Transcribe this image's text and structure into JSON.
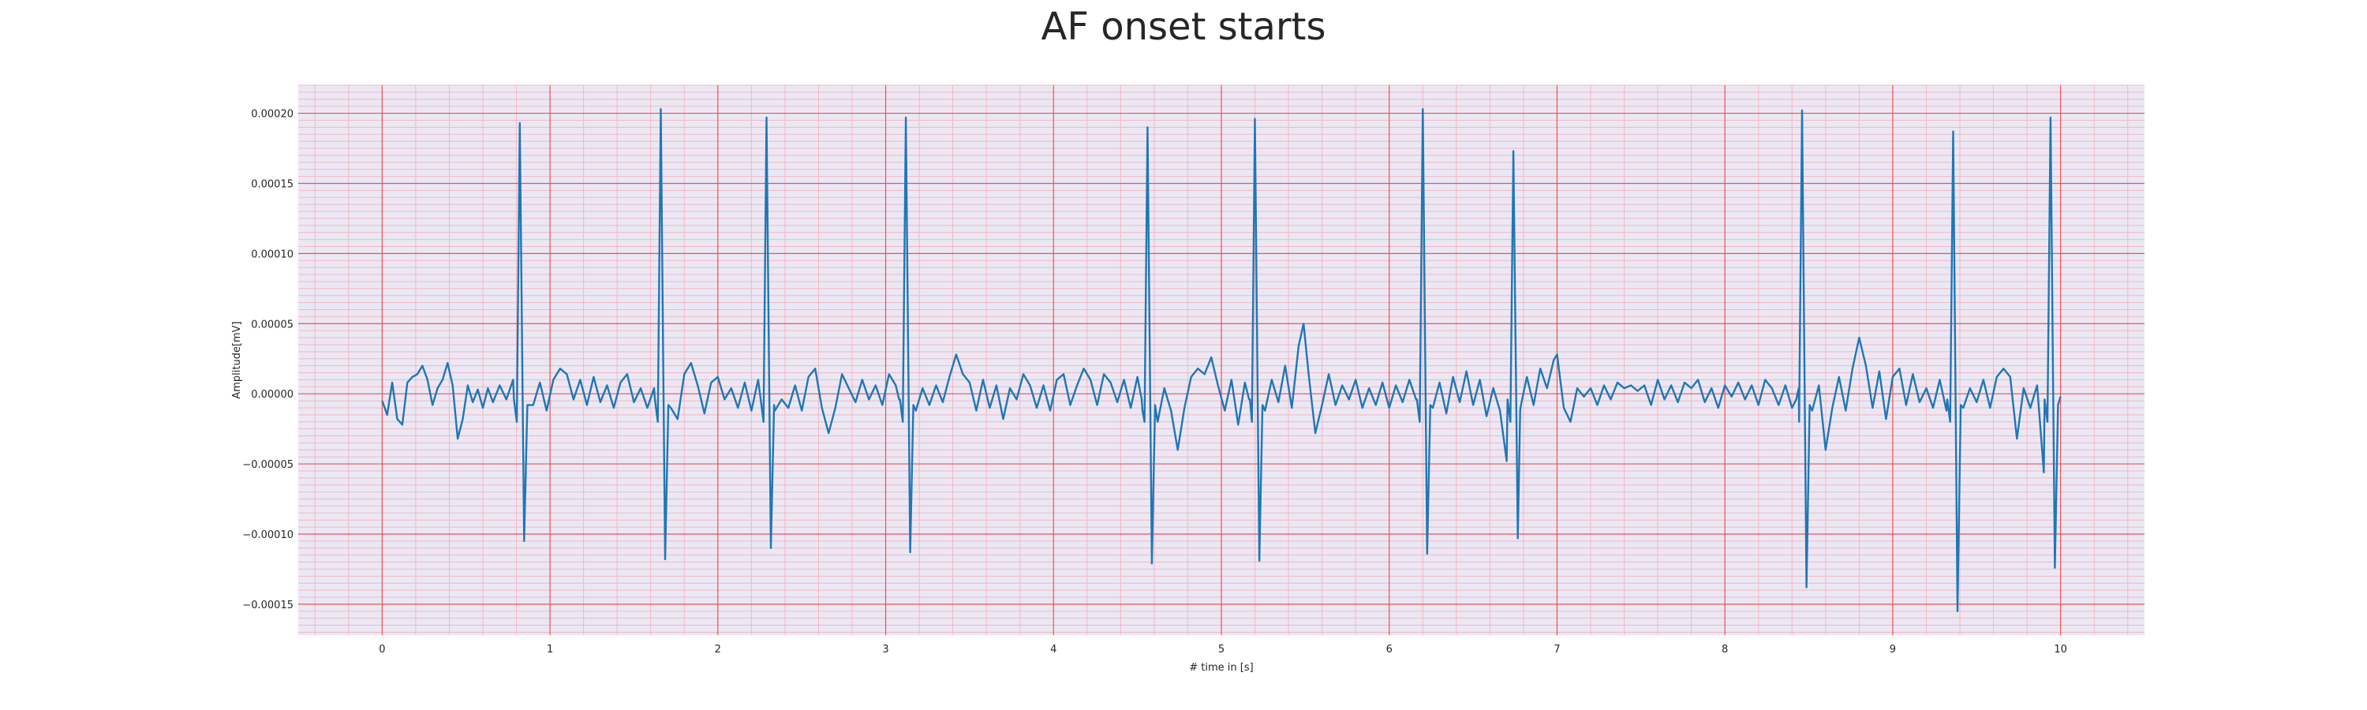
{
  "chart_data": {
    "type": "line",
    "title": "AF onset starts",
    "xlabel": "# time in [s]",
    "ylabel": "Amplitude[mV]",
    "xlim": [
      -0.5,
      10.5
    ],
    "ylim": [
      -0.000172,
      0.00022
    ],
    "x_ticks": [
      0,
      1,
      2,
      3,
      4,
      5,
      6,
      7,
      8,
      9,
      10
    ],
    "x_tick_labels": [
      "0",
      "1",
      "2",
      "3",
      "4",
      "5",
      "6",
      "7",
      "8",
      "9",
      "10"
    ],
    "y_ticks": [
      -0.00015,
      -0.0001,
      -5e-05,
      0,
      5e-05,
      0.0001,
      0.00015,
      0.0002
    ],
    "y_tick_labels": [
      "−0.00015",
      "−0.00010",
      "−0.00005",
      "0.00000",
      "0.00005",
      "0.00010",
      "0.00015",
      "0.00020"
    ],
    "grid": {
      "major": true,
      "minor": true
    },
    "colors": {
      "line": "#1f77b4",
      "background": "#eae8f4",
      "major_grid": "#f05050",
      "minor_grid": "#f4b6c2"
    },
    "series": [
      {
        "beats": [
          {
            "t": 0.82,
            "r": 0.000193,
            "s": -0.000105
          },
          {
            "t": 1.66,
            "r": 0.000203,
            "s": -0.000118
          },
          {
            "t": 2.29,
            "r": 0.000197,
            "s": -0.00011
          },
          {
            "t": 3.12,
            "r": 0.000197,
            "s": -0.000113
          },
          {
            "t": 4.56,
            "r": 0.00019,
            "s": -0.000121
          },
          {
            "t": 5.2,
            "r": 0.000196,
            "s": -0.000119
          },
          {
            "t": 6.2,
            "r": 0.000203,
            "s": -0.000114
          },
          {
            "t": 6.74,
            "r": 0.000173,
            "s": -0.000103
          },
          {
            "t": 8.46,
            "r": 0.000202,
            "s": -0.000138
          },
          {
            "t": 9.36,
            "r": 0.000187,
            "s": -0.000155
          },
          {
            "t": 9.94,
            "r": 0.000197,
            "s": -0.000124
          }
        ],
        "baseline": [
          [
            0.0,
            -5e-06
          ],
          [
            0.03,
            -1.5e-05
          ],
          [
            0.06,
            8e-06
          ],
          [
            0.09,
            -1.8e-05
          ],
          [
            0.12,
            -2.2e-05
          ],
          [
            0.15,
            8e-06
          ],
          [
            0.18,
            1.2e-05
          ],
          [
            0.21,
            1.4e-05
          ],
          [
            0.24,
            2e-05
          ],
          [
            0.27,
            1e-05
          ],
          [
            0.3,
            -8e-06
          ],
          [
            0.33,
            4e-06
          ],
          [
            0.36,
            1e-05
          ],
          [
            0.39,
            2.2e-05
          ],
          [
            0.42,
            6e-06
          ],
          [
            0.45,
            -3.2e-05
          ],
          [
            0.48,
            -1.8e-05
          ],
          [
            0.51,
            6e-06
          ],
          [
            0.54,
            -6e-06
          ],
          [
            0.57,
            3e-06
          ],
          [
            0.6,
            -1e-05
          ],
          [
            0.63,
            4e-06
          ],
          [
            0.66,
            -6e-06
          ],
          [
            0.7,
            6e-06
          ],
          [
            0.74,
            -4e-06
          ],
          [
            0.78,
            1e-05
          ],
          [
            0.9,
            -8e-06
          ],
          [
            0.94,
            8e-06
          ],
          [
            0.98,
            -1.2e-05
          ],
          [
            1.02,
            1e-05
          ],
          [
            1.06,
            1.8e-05
          ],
          [
            1.1,
            1.4e-05
          ],
          [
            1.14,
            -4e-06
          ],
          [
            1.18,
            1e-05
          ],
          [
            1.22,
            -8e-06
          ],
          [
            1.26,
            1.2e-05
          ],
          [
            1.3,
            -6e-06
          ],
          [
            1.34,
            6e-06
          ],
          [
            1.38,
            -1e-05
          ],
          [
            1.42,
            8e-06
          ],
          [
            1.46,
            1.4e-05
          ],
          [
            1.5,
            -6e-06
          ],
          [
            1.54,
            4e-06
          ],
          [
            1.58,
            -1e-05
          ],
          [
            1.62,
            4e-06
          ],
          [
            1.72,
            -1e-05
          ],
          [
            1.76,
            -1.8e-05
          ],
          [
            1.8,
            1.4e-05
          ],
          [
            1.84,
            2.2e-05
          ],
          [
            1.88,
            6e-06
          ],
          [
            1.92,
            -1.4e-05
          ],
          [
            1.96,
            8e-06
          ],
          [
            2.0,
            1.2e-05
          ],
          [
            2.04,
            -4e-06
          ],
          [
            2.08,
            4e-06
          ],
          [
            2.12,
            -1e-05
          ],
          [
            2.16,
            8e-06
          ],
          [
            2.2,
            -1.2e-05
          ],
          [
            2.24,
            1e-05
          ],
          [
            2.34,
            -1.2e-05
          ],
          [
            2.38,
            -4e-06
          ],
          [
            2.42,
            -1e-05
          ],
          [
            2.46,
            6e-06
          ],
          [
            2.5,
            -1.2e-05
          ],
          [
            2.54,
            1.2e-05
          ],
          [
            2.58,
            1.8e-05
          ],
          [
            2.62,
            -1e-05
          ],
          [
            2.66,
            -2.8e-05
          ],
          [
            2.7,
            -1e-05
          ],
          [
            2.74,
            1.4e-05
          ],
          [
            2.78,
            4e-06
          ],
          [
            2.82,
            -6e-06
          ],
          [
            2.86,
            1e-05
          ],
          [
            2.9,
            -4e-06
          ],
          [
            2.94,
            6e-06
          ],
          [
            2.98,
            -8e-06
          ],
          [
            3.02,
            1.4e-05
          ],
          [
            3.06,
            6e-06
          ],
          [
            3.08,
            -4e-06
          ],
          [
            3.18,
            -1.2e-05
          ],
          [
            3.22,
            4e-06
          ],
          [
            3.26,
            -8e-06
          ],
          [
            3.3,
            6e-06
          ],
          [
            3.34,
            -6e-06
          ],
          [
            3.38,
            1.2e-05
          ],
          [
            3.42,
            2.8e-05
          ],
          [
            3.46,
            1.4e-05
          ],
          [
            3.5,
            8e-06
          ],
          [
            3.54,
            -1.2e-05
          ],
          [
            3.58,
            1e-05
          ],
          [
            3.62,
            -1e-05
          ],
          [
            3.66,
            6e-06
          ],
          [
            3.7,
            -1.8e-05
          ],
          [
            3.74,
            4e-06
          ],
          [
            3.78,
            -4e-06
          ],
          [
            3.82,
            1.4e-05
          ],
          [
            3.86,
            6e-06
          ],
          [
            3.9,
            -1e-05
          ],
          [
            3.94,
            6e-06
          ],
          [
            3.98,
            -1.2e-05
          ],
          [
            4.02,
            1e-05
          ],
          [
            4.06,
            1.4e-05
          ],
          [
            4.1,
            -8e-06
          ],
          [
            4.14,
            6e-06
          ],
          [
            4.18,
            1.8e-05
          ],
          [
            4.22,
            1e-05
          ],
          [
            4.26,
            -8e-06
          ],
          [
            4.3,
            1.4e-05
          ],
          [
            4.34,
            8e-06
          ],
          [
            4.38,
            -6e-06
          ],
          [
            4.42,
            1e-05
          ],
          [
            4.46,
            -1e-05
          ],
          [
            4.5,
            1.2e-05
          ],
          [
            4.53,
            -1.2e-05
          ],
          [
            4.62,
            -2e-05
          ],
          [
            4.66,
            4e-06
          ],
          [
            4.7,
            -1.2e-05
          ],
          [
            4.74,
            -4e-05
          ],
          [
            4.78,
            -1e-05
          ],
          [
            4.82,
            1.2e-05
          ],
          [
            4.86,
            1.8e-05
          ],
          [
            4.9,
            1.4e-05
          ],
          [
            4.94,
            2.6e-05
          ],
          [
            4.98,
            6e-06
          ],
          [
            5.02,
            -1.2e-05
          ],
          [
            5.06,
            1e-05
          ],
          [
            5.1,
            -2.2e-05
          ],
          [
            5.14,
            8e-06
          ],
          [
            5.17,
            -4e-06
          ],
          [
            5.26,
            -1.2e-05
          ],
          [
            5.3,
            1e-05
          ],
          [
            5.34,
            -6e-06
          ],
          [
            5.38,
            2e-05
          ],
          [
            5.42,
            -1e-05
          ],
          [
            5.46,
            3.4e-05
          ],
          [
            5.49,
            5e-05
          ],
          [
            5.52,
            1.4e-05
          ],
          [
            5.56,
            -2.8e-05
          ],
          [
            5.6,
            -8e-06
          ],
          [
            5.64,
            1.4e-05
          ],
          [
            5.68,
            -8e-06
          ],
          [
            5.72,
            6e-06
          ],
          [
            5.76,
            -4e-06
          ],
          [
            5.8,
            1e-05
          ],
          [
            5.84,
            -1e-05
          ],
          [
            5.88,
            4e-06
          ],
          [
            5.92,
            -8e-06
          ],
          [
            5.96,
            8e-06
          ],
          [
            6.0,
            -1e-05
          ],
          [
            6.04,
            6e-06
          ],
          [
            6.08,
            -6e-06
          ],
          [
            6.12,
            1e-05
          ],
          [
            6.16,
            -4e-06
          ],
          [
            6.26,
            -1e-05
          ],
          [
            6.3,
            8e-06
          ],
          [
            6.34,
            -1.4e-05
          ],
          [
            6.38,
            1.2e-05
          ],
          [
            6.42,
            -6e-06
          ],
          [
            6.46,
            1.6e-05
          ],
          [
            6.5,
            -8e-06
          ],
          [
            6.54,
            1e-05
          ],
          [
            6.58,
            -1.6e-05
          ],
          [
            6.62,
            4e-06
          ],
          [
            6.66,
            -1.2e-05
          ],
          [
            6.7,
            -4.8e-05
          ],
          [
            6.78,
            -1.2e-05
          ],
          [
            6.82,
            1.2e-05
          ],
          [
            6.86,
            -8e-06
          ],
          [
            6.9,
            1.8e-05
          ],
          [
            6.94,
            4e-06
          ],
          [
            6.98,
            2.4e-05
          ],
          [
            7.0,
            2.8e-05
          ],
          [
            7.04,
            -1e-05
          ],
          [
            7.08,
            -2e-05
          ],
          [
            7.12,
            4e-06
          ],
          [
            7.16,
            -2e-06
          ],
          [
            7.2,
            4e-06
          ],
          [
            7.24,
            -8e-06
          ],
          [
            7.28,
            6e-06
          ],
          [
            7.32,
            -4e-06
          ],
          [
            7.36,
            8e-06
          ],
          [
            7.4,
            4e-06
          ],
          [
            7.44,
            6e-06
          ],
          [
            7.48,
            2e-06
          ],
          [
            7.52,
            6e-06
          ],
          [
            7.56,
            -8e-06
          ],
          [
            7.6,
            1e-05
          ],
          [
            7.64,
            -4e-06
          ],
          [
            7.68,
            6e-06
          ],
          [
            7.72,
            -6e-06
          ],
          [
            7.76,
            8e-06
          ],
          [
            7.8,
            4e-06
          ],
          [
            7.84,
            1e-05
          ],
          [
            7.88,
            -6e-06
          ],
          [
            7.92,
            4e-06
          ],
          [
            7.96,
            -1e-05
          ],
          [
            8.0,
            6e-06
          ],
          [
            8.04,
            -2e-06
          ],
          [
            8.08,
            8e-06
          ],
          [
            8.12,
            -4e-06
          ],
          [
            8.16,
            6e-06
          ],
          [
            8.2,
            -8e-06
          ],
          [
            8.24,
            1e-05
          ],
          [
            8.28,
            4e-06
          ],
          [
            8.32,
            -8e-06
          ],
          [
            8.36,
            6e-06
          ],
          [
            8.4,
            -1e-05
          ],
          [
            8.44,
            4e-06
          ],
          [
            8.52,
            -1.2e-05
          ],
          [
            8.56,
            6e-06
          ],
          [
            8.6,
            -4e-05
          ],
          [
            8.64,
            -1e-05
          ],
          [
            8.68,
            1.2e-05
          ],
          [
            8.72,
            -1.2e-05
          ],
          [
            8.76,
            1.8e-05
          ],
          [
            8.8,
            4e-05
          ],
          [
            8.84,
            2e-05
          ],
          [
            8.88,
            -1e-05
          ],
          [
            8.92,
            1.6e-05
          ],
          [
            8.96,
            -1.8e-05
          ],
          [
            9.0,
            1.2e-05
          ],
          [
            9.04,
            1.8e-05
          ],
          [
            9.08,
            -8e-06
          ],
          [
            9.12,
            1.4e-05
          ],
          [
            9.16,
            -6e-06
          ],
          [
            9.2,
            4e-06
          ],
          [
            9.24,
            -1e-05
          ],
          [
            9.28,
            1e-05
          ],
          [
            9.32,
            -1.2e-05
          ],
          [
            9.42,
            -1e-05
          ],
          [
            9.46,
            4e-06
          ],
          [
            9.5,
            -6e-06
          ],
          [
            9.54,
            1e-05
          ],
          [
            9.58,
            -1e-05
          ],
          [
            9.62,
            1.2e-05
          ],
          [
            9.66,
            1.8e-05
          ],
          [
            9.7,
            1.2e-05
          ],
          [
            9.74,
            -3.2e-05
          ],
          [
            9.78,
            4e-06
          ],
          [
            9.82,
            -1e-05
          ],
          [
            9.86,
            6e-06
          ],
          [
            9.9,
            -5.6e-05
          ],
          [
            10.0,
            -2e-06
          ]
        ]
      }
    ]
  }
}
